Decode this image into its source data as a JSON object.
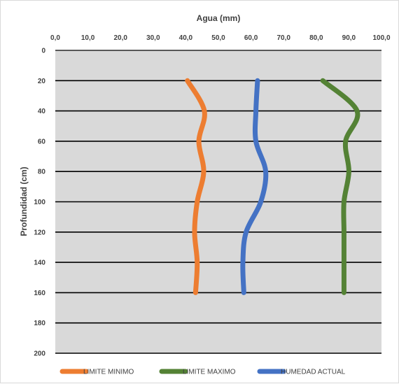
{
  "chart_data": {
    "type": "line",
    "title": "",
    "xlabel": "Agua (mm)",
    "ylabel": "Profundidad (cm)",
    "x_axis_position": "top",
    "y_axis_inverted": true,
    "xlim": [
      0,
      100
    ],
    "ylim": [
      0,
      200
    ],
    "x_ticks": [
      "0,0",
      "10,0",
      "20,0",
      "30,0",
      "40,0",
      "50,0",
      "60,0",
      "70,0",
      "80,0",
      "90,0",
      "100,0"
    ],
    "y_ticks": [
      "0",
      "20",
      "40",
      "60",
      "80",
      "100",
      "120",
      "140",
      "160",
      "180",
      "200"
    ],
    "plot_background": "#d9d9d9",
    "grid": "horizontal",
    "legend_position": "bottom",
    "series": [
      {
        "name": "LIMITE MINIMO",
        "color": "#ed7d31",
        "points": [
          {
            "x": 40.5,
            "y": 20
          },
          {
            "x": 45.7,
            "y": 40
          },
          {
            "x": 44.0,
            "y": 60
          },
          {
            "x": 45.5,
            "y": 80
          },
          {
            "x": 43.5,
            "y": 100
          },
          {
            "x": 42.7,
            "y": 120
          },
          {
            "x": 43.5,
            "y": 140
          },
          {
            "x": 43.0,
            "y": 160
          }
        ]
      },
      {
        "name": "LIMITE MAXIMO",
        "color": "#548235",
        "points": [
          {
            "x": 82.0,
            "y": 20
          },
          {
            "x": 92.5,
            "y": 40
          },
          {
            "x": 89.0,
            "y": 60
          },
          {
            "x": 90.0,
            "y": 80
          },
          {
            "x": 88.5,
            "y": 100
          },
          {
            "x": 88.5,
            "y": 120
          },
          {
            "x": 88.5,
            "y": 140
          },
          {
            "x": 88.5,
            "y": 160
          }
        ]
      },
      {
        "name": "HUMEDAD ACTUAL",
        "color": "#4472c4",
        "points": [
          {
            "x": 62.0,
            "y": 20
          },
          {
            "x": 61.5,
            "y": 40
          },
          {
            "x": 61.5,
            "y": 60
          },
          {
            "x": 64.5,
            "y": 80
          },
          {
            "x": 63.0,
            "y": 100
          },
          {
            "x": 58.5,
            "y": 120
          },
          {
            "x": 57.5,
            "y": 140
          },
          {
            "x": 57.8,
            "y": 160
          }
        ]
      }
    ]
  }
}
